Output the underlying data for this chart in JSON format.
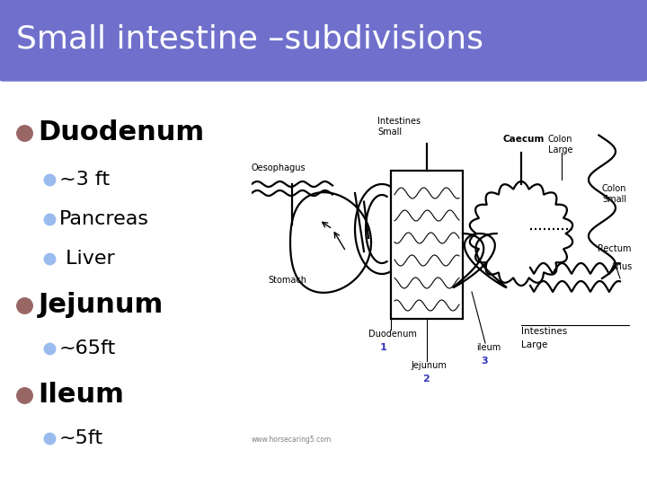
{
  "title": "Small intestine –subdivisions",
  "title_bg_color": "#7070cc",
  "title_text_color": "#ffffff",
  "slide_bg_color": "#ffffff",
  "border_color": "#5588aa",
  "bullet_color_main": "#996666",
  "bullet_color_sub": "#99bbee",
  "main_items": [
    {
      "text": "Duodenum",
      "sub_items": [
        "~3 ft",
        "Pancreas",
        " Liver"
      ]
    },
    {
      "text": "Jejunum",
      "sub_items": [
        "~65ft"
      ]
    },
    {
      "text": "Ileum",
      "sub_items": [
        "~5ft"
      ]
    }
  ],
  "footnote": "www.horsecaring5.com",
  "title_fontsize": 26,
  "main_fontsize": 22,
  "sub_fontsize": 16
}
